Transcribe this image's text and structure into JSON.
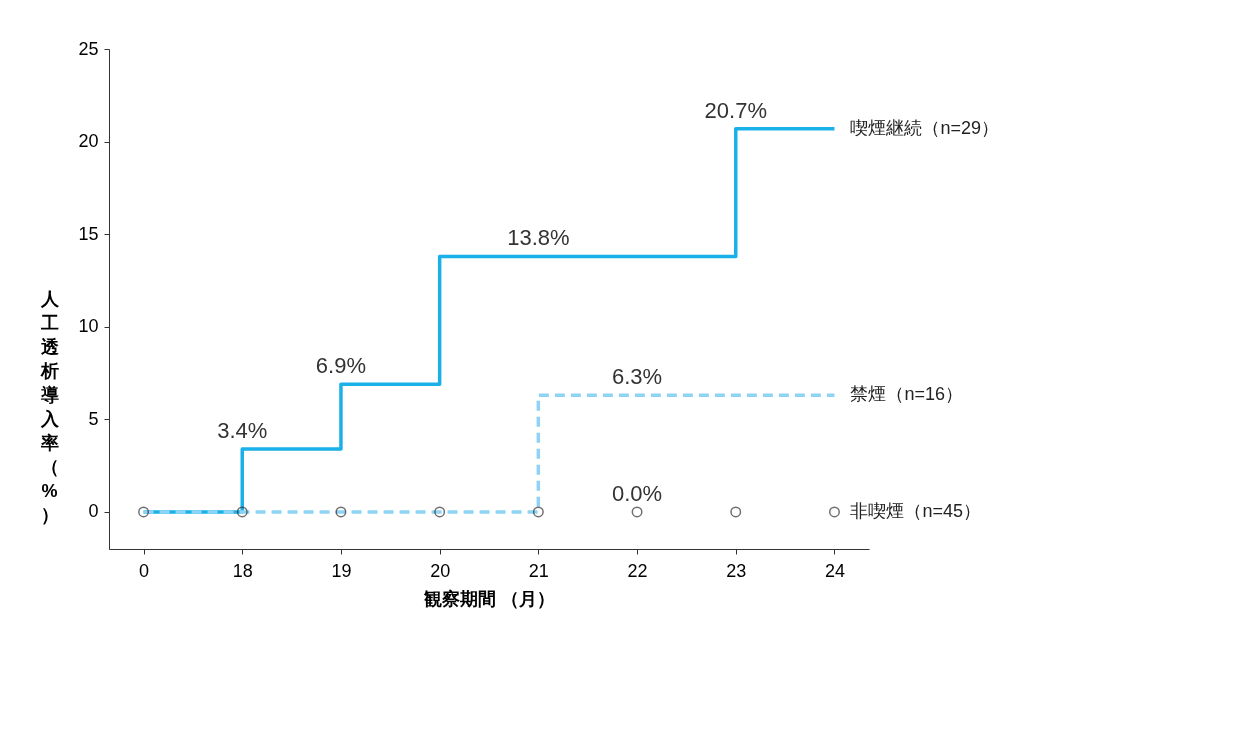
{
  "chart_data": {
    "type": "step",
    "xlabel": "観察期間 （月）",
    "ylabel": "人工透析導入率（%）",
    "categories": [
      "0",
      "18",
      "19",
      "20",
      "21",
      "22",
      "23",
      "24"
    ],
    "ylim": [
      -2,
      25
    ],
    "yticks": [
      0,
      5,
      10,
      15,
      20,
      25
    ],
    "grid": false,
    "series": [
      {
        "name": "喫煙継続（n=29）",
        "color": "#1ab0e8",
        "line_style": "solid",
        "values": [
          0,
          3.4,
          6.9,
          13.8,
          13.8,
          13.8,
          20.7,
          20.7
        ],
        "value_labels": [
          null,
          "3.4%",
          "6.9%",
          null,
          "13.8%",
          null,
          "20.7%",
          null
        ]
      },
      {
        "name": "禁煙（n=16）",
        "color": "#8fd3f3",
        "line_style": "dashed",
        "values": [
          0,
          0,
          0,
          0,
          6.3,
          6.3,
          6.3,
          6.3
        ],
        "value_labels": [
          null,
          null,
          null,
          null,
          null,
          "6.3%",
          null,
          null
        ]
      },
      {
        "name": "非喫煙（n=45）",
        "type": "scatter",
        "marker": "circle",
        "color": "#333333",
        "values": [
          0,
          0,
          0,
          0,
          0,
          0,
          0,
          0
        ],
        "value_labels": [
          null,
          null,
          null,
          null,
          null,
          "0.0%",
          null,
          null
        ]
      }
    ]
  }
}
